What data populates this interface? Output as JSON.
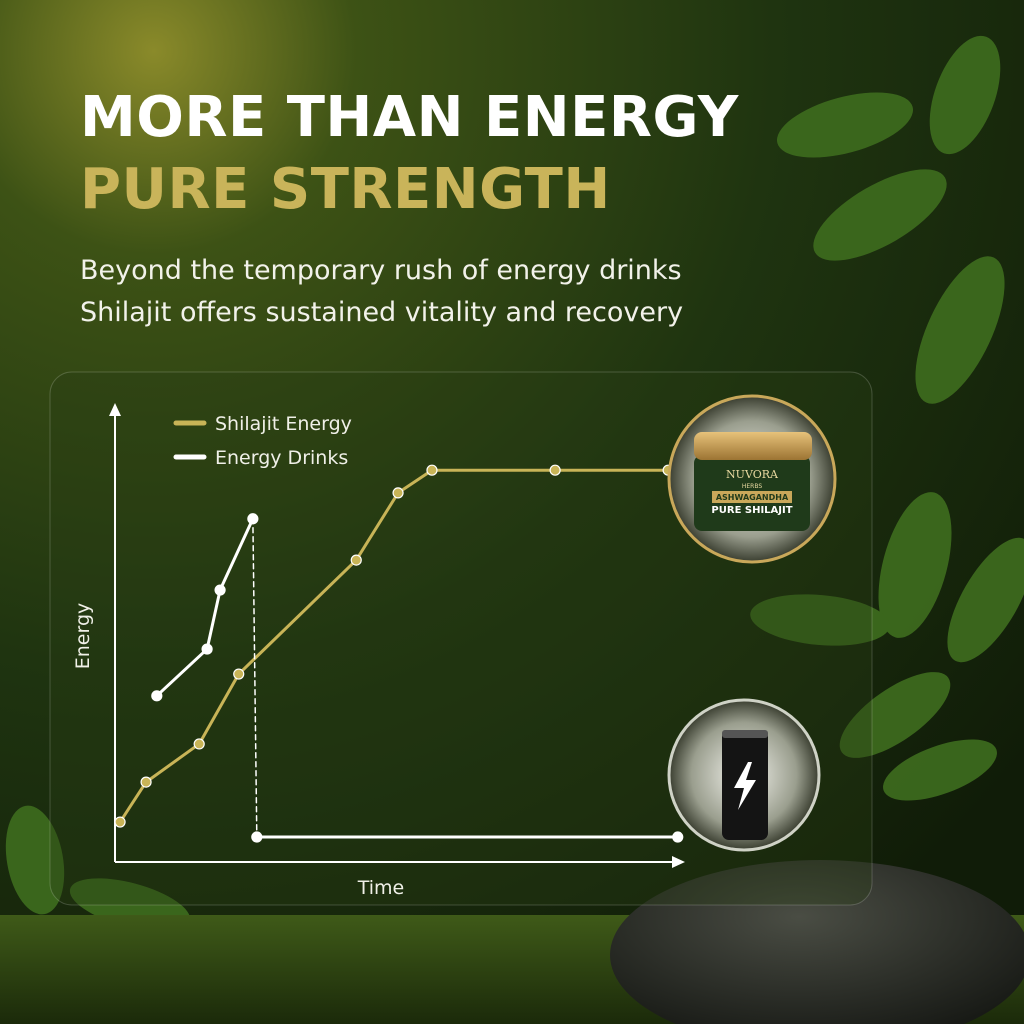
{
  "header": {
    "title": "MORE THAN ENERGY",
    "highlight": "PURE STRENGTH",
    "subtitle": [
      "Beyond the temporary rush of energy drinks",
      "Shilajit offers sustained vitality and recovery"
    ]
  },
  "product": {
    "brand": "NUVORA",
    "brand_sub": "HERBS",
    "band": "ASHWAGANDHA",
    "name": "PURE SHILAJIT"
  },
  "chart_data": {
    "type": "line",
    "x_label": "Time",
    "y_label": "Energy",
    "xlim": [
      0,
      100
    ],
    "ylim": [
      0,
      100
    ],
    "series": [
      {
        "name": "Shilajit Energy",
        "color": "#c8b457",
        "x": [
          0.9,
          5.5,
          14.9,
          21.9,
          42.7,
          50.1,
          56.1,
          77.9,
          97.9
        ],
        "values": [
          8.8,
          17.6,
          26,
          41.4,
          66.5,
          81.3,
          86.3,
          86.3,
          86.3
        ]
      },
      {
        "name": "Energy Drinks",
        "color": "#ffffff",
        "x": [
          7.4,
          16.3,
          18.6,
          24.4,
          25.1,
          99.6
        ],
        "values": [
          36.6,
          46.9,
          59.9,
          75.6,
          5.5,
          5.5
        ]
      }
    ]
  }
}
